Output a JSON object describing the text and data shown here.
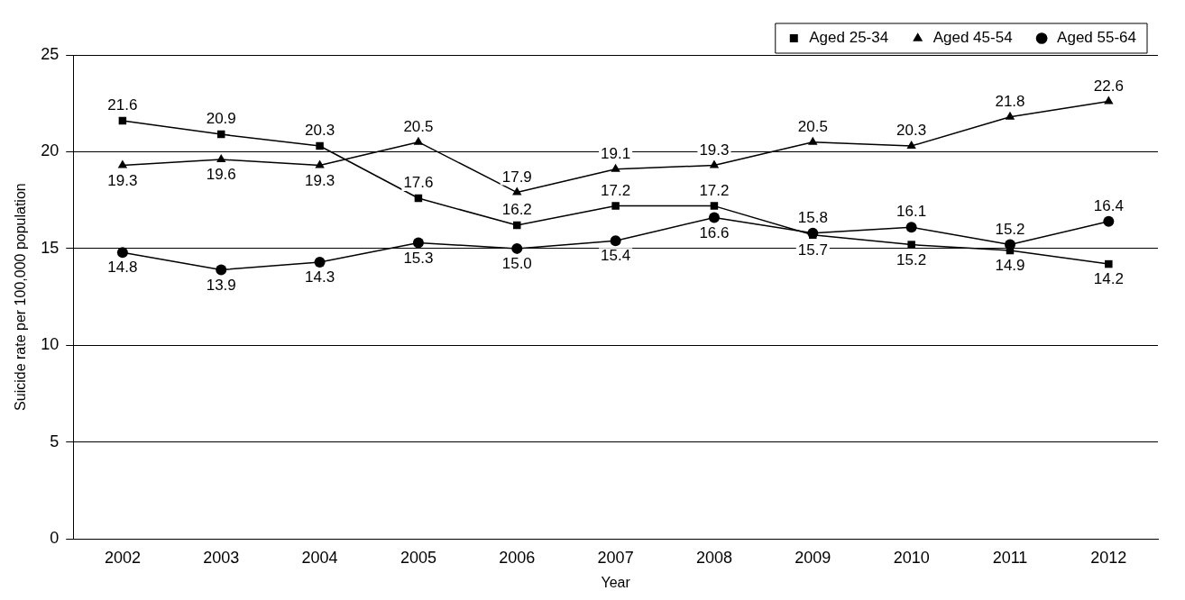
{
  "chart_data": {
    "type": "line",
    "xlabel": "Year",
    "ylabel": "Suicide rate per 100,000 population",
    "categories": [
      "2002",
      "2003",
      "2004",
      "2005",
      "2006",
      "2007",
      "2008",
      "2009",
      "2010",
      "2011",
      "2012"
    ],
    "series": [
      {
        "name": "Aged 25-34",
        "color": "#000000",
        "marker": "square",
        "values": [
          21.6,
          20.9,
          20.3,
          17.6,
          16.2,
          17.2,
          17.2,
          15.7,
          15.2,
          14.9,
          14.2
        ],
        "value_labels": [
          "21.6",
          "20.9",
          "20.3",
          "17.6",
          "16.2",
          "17.2",
          "17.2",
          "15.7",
          "15.2",
          "14.9",
          "14.2"
        ]
      },
      {
        "name": "Aged 45-54",
        "color": "#000000",
        "marker": "triangle",
        "values": [
          19.3,
          19.6,
          19.3,
          20.5,
          17.9,
          19.1,
          19.3,
          20.5,
          20.3,
          21.8,
          22.6
        ],
        "value_labels": [
          "19.3",
          "19.6",
          "19.3",
          "20.5",
          "17.9",
          "19.1",
          "19.3",
          "20.5",
          "20.3",
          "21.8",
          "22.6"
        ]
      },
      {
        "name": "Aged 55-64",
        "color": "#000000",
        "marker": "circle",
        "values": [
          14.8,
          13.9,
          14.3,
          15.3,
          15.0,
          15.4,
          16.6,
          15.8,
          16.1,
          15.2,
          16.4
        ],
        "value_labels": [
          "14.8",
          "13.9",
          "14.3",
          "15.3",
          "15.0",
          "15.4",
          "16.6",
          "15.8",
          "16.1",
          "15.2",
          "16.4"
        ]
      }
    ],
    "ylim": [
      0,
      25
    ],
    "yticks": [
      0,
      5,
      10,
      15,
      20,
      25
    ],
    "grid": "y",
    "legend": "top right",
    "line_style": "solid"
  }
}
